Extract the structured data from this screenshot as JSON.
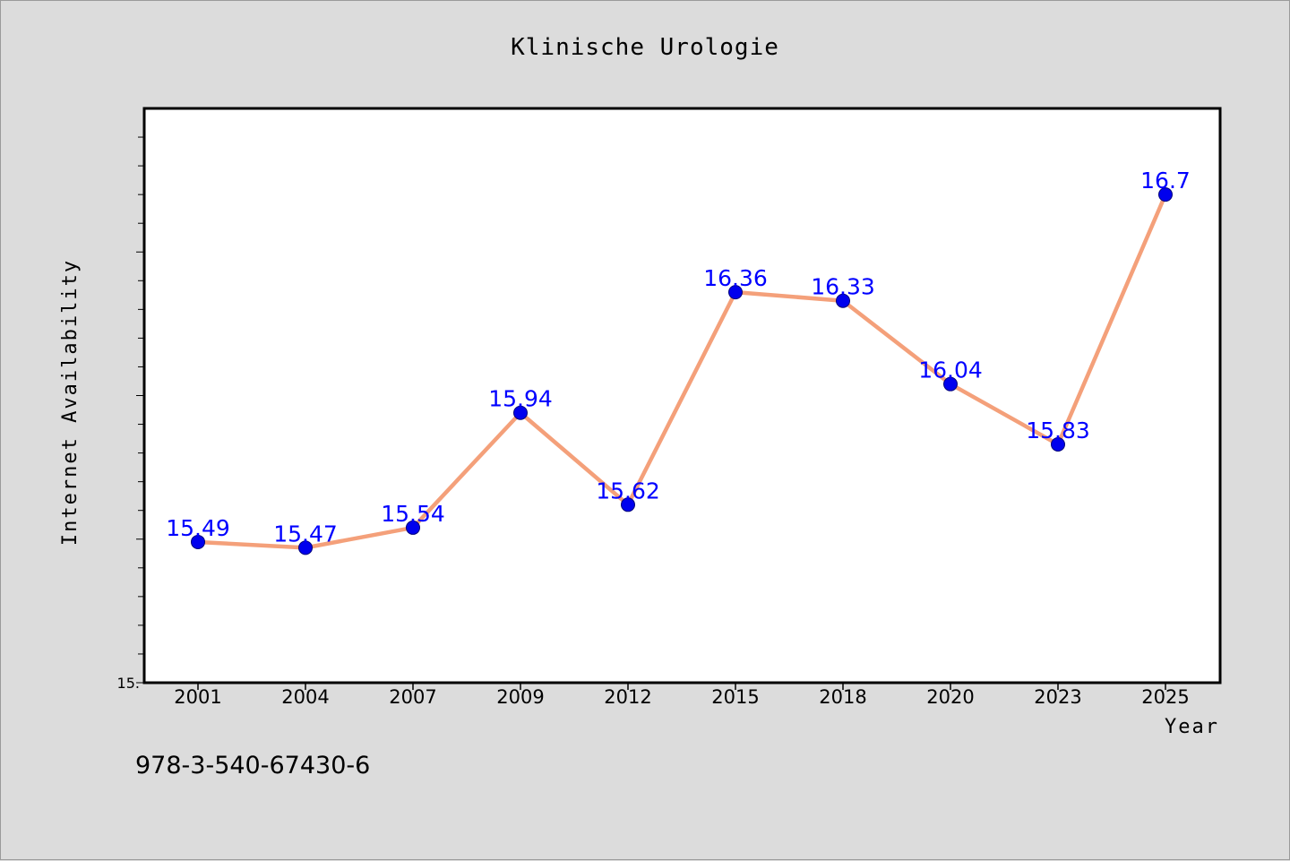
{
  "chart_data": {
    "type": "line",
    "title": "Klinische Urologie",
    "xlabel": "Year",
    "ylabel": "Internet Availability",
    "categories": [
      "2001",
      "2004",
      "2007",
      "2009",
      "2012",
      "2015",
      "2018",
      "2020",
      "2023",
      "2025"
    ],
    "series": [
      {
        "values": [
          15.49,
          15.47,
          15.54,
          15.94,
          15.62,
          16.36,
          16.33,
          16.04,
          15.83,
          16.7
        ],
        "data_labels": [
          "15.49",
          "15.47",
          "15.54",
          "15.94",
          "15.62",
          "16.36",
          "16.33",
          "16.04",
          "15.83",
          "16.7"
        ],
        "line_color": "#f4a07a",
        "marker_color": "#0000ee",
        "label_color": "#0000ff"
      }
    ],
    "ylim": [
      15.0,
      17.0
    ],
    "y_tick_labels": [
      "15."
    ],
    "grid": false,
    "legend": false
  },
  "footnote": "978-3-540-67430-6",
  "colors": {
    "background": "#dcdcdc",
    "plot_background": "#ffffff",
    "axis": "#000000"
  }
}
